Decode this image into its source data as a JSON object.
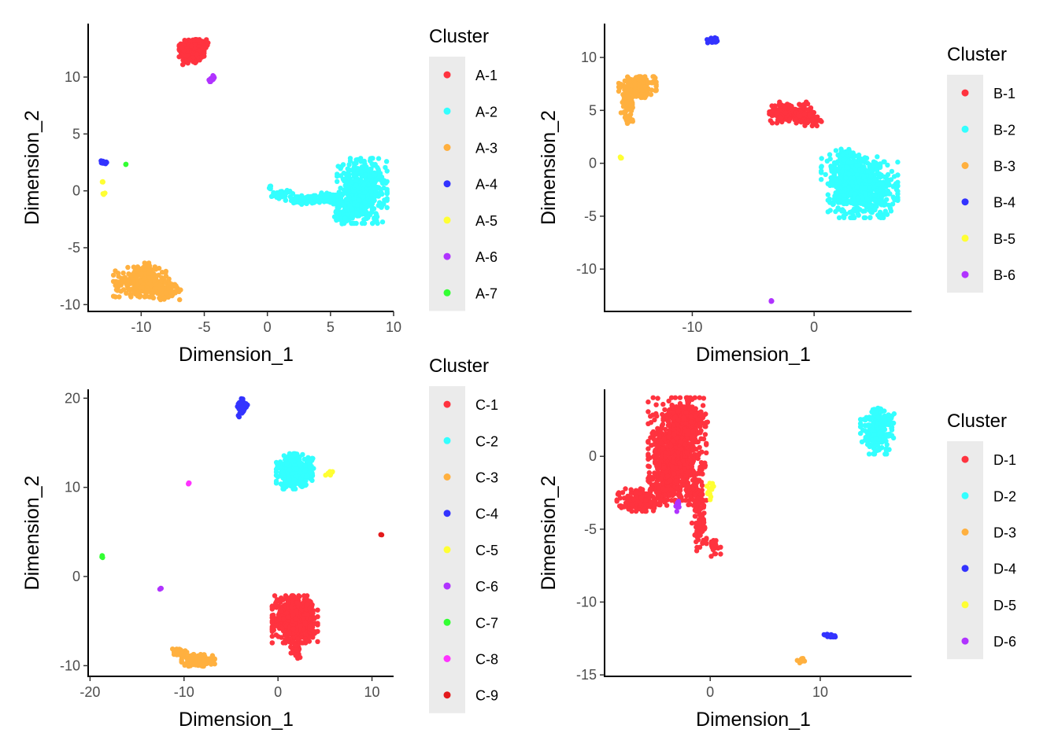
{
  "chart_data": [
    {
      "type": "scatter",
      "xlabel": "Dimension_1",
      "ylabel": "Dimension_2",
      "xlim": [
        -14.2,
        10
      ],
      "ylim": [
        -10.6,
        14.7
      ],
      "xticks": [
        -10,
        -5,
        0,
        5,
        10
      ],
      "yticks": [
        -10,
        -5,
        0,
        5,
        10
      ],
      "legend_title": "Cluster",
      "legend_position": "right",
      "series": [
        {
          "name": "A-1",
          "color": "#FF333F",
          "clusters": [
            {
              "cx": -6.0,
              "cy": 12.2,
              "sx": 0.45,
              "sy": 0.5,
              "n": 260
            },
            {
              "cx": -5.8,
              "cy": 12.8,
              "sx": 0.5,
              "sy": 0.25,
              "n": 120
            }
          ]
        },
        {
          "name": "A-2",
          "color": "#33FFFF",
          "clusters": [
            {
              "cx": 7.5,
              "cy": 0.0,
              "sx": 0.9,
              "sy": 1.3,
              "n": 500
            },
            {
              "cx": 6.2,
              "cy": -1.8,
              "sx": 0.4,
              "sy": 0.5,
              "n": 80
            },
            {
              "cx": 5.0,
              "cy": -0.7,
              "sx": 0.6,
              "sy": 0.25,
              "n": 90
            },
            {
              "cx": 3.2,
              "cy": -0.8,
              "sx": 0.8,
              "sy": 0.18,
              "n": 60
            },
            {
              "cx": 1.2,
              "cy": -0.3,
              "sx": 0.5,
              "sy": 0.2,
              "n": 25
            },
            {
              "cx": 0.2,
              "cy": 0.3,
              "sx": 0.12,
              "sy": 0.1,
              "n": 6
            }
          ]
        },
        {
          "name": "A-3",
          "color": "#FFB03F",
          "clusters": [
            {
              "cx": -10.0,
              "cy": -8.0,
              "sx": 1.0,
              "sy": 0.6,
              "n": 220
            },
            {
              "cx": -8.2,
              "cy": -8.8,
              "sx": 0.6,
              "sy": 0.35,
              "n": 120
            },
            {
              "cx": -9.6,
              "cy": -7.0,
              "sx": 0.35,
              "sy": 0.3,
              "n": 40
            }
          ]
        },
        {
          "name": "A-4",
          "color": "#3333FF",
          "clusters": [
            {
              "cx": -13.0,
              "cy": 2.5,
              "sx": 0.12,
              "sy": 0.1,
              "n": 15
            }
          ]
        },
        {
          "name": "A-5",
          "color": "#FFFF33",
          "clusters": [
            {
              "cx": -13.1,
              "cy": 0.8,
              "sx": 0.05,
              "sy": 0.05,
              "n": 3
            },
            {
              "cx": -13.0,
              "cy": -0.3,
              "sx": 0.08,
              "sy": 0.08,
              "n": 5
            }
          ]
        },
        {
          "name": "A-6",
          "color": "#B033FF",
          "clusters": [
            {
              "cx": -4.4,
              "cy": 9.8,
              "sx": 0.15,
              "sy": 0.15,
              "n": 15
            }
          ]
        },
        {
          "name": "A-7",
          "color": "#33FF33",
          "clusters": [
            {
              "cx": -11.2,
              "cy": 2.3,
              "sx": 0.04,
              "sy": 0.04,
              "n": 3
            }
          ]
        }
      ]
    },
    {
      "type": "scatter",
      "xlabel": "Dimension_1",
      "ylabel": "Dimension_2",
      "xlim": [
        -17.2,
        8.0
      ],
      "ylim": [
        -14.0,
        13.2
      ],
      "xticks": [
        -10,
        0
      ],
      "yticks": [
        -10,
        -5,
        0,
        5,
        10
      ],
      "legend_title": "Cluster",
      "legend_position": "right",
      "series": [
        {
          "name": "B-1",
          "color": "#FF333F",
          "clusters": [
            {
              "cx": -2.0,
              "cy": 4.8,
              "sx": 0.9,
              "sy": 0.45,
              "n": 140
            },
            {
              "cx": -0.5,
              "cy": 4.2,
              "sx": 0.5,
              "sy": 0.3,
              "n": 60
            }
          ]
        },
        {
          "name": "B-2",
          "color": "#33FFFF",
          "clusters": [
            {
              "cx": 4.0,
              "cy": -2.5,
              "sx": 1.3,
              "sy": 1.2,
              "n": 600
            },
            {
              "cx": 3.0,
              "cy": -0.5,
              "sx": 1.1,
              "sy": 0.6,
              "n": 200
            },
            {
              "cx": 2.5,
              "cy": 0.5,
              "sx": 0.35,
              "sy": 0.4,
              "n": 40
            }
          ]
        },
        {
          "name": "B-3",
          "color": "#FFB03F",
          "clusters": [
            {
              "cx": -14.5,
              "cy": 7.2,
              "sx": 0.7,
              "sy": 0.45,
              "n": 250
            },
            {
              "cx": -15.3,
              "cy": 5.5,
              "sx": 0.25,
              "sy": 0.7,
              "n": 60
            },
            {
              "cx": -15.3,
              "cy": 4.0,
              "sx": 0.1,
              "sy": 0.2,
              "n": 10
            }
          ]
        },
        {
          "name": "B-4",
          "color": "#3333FF",
          "clusters": [
            {
              "cx": -8.3,
              "cy": 11.6,
              "sx": 0.22,
              "sy": 0.12,
              "n": 25
            }
          ]
        },
        {
          "name": "B-5",
          "color": "#FFFF33",
          "clusters": [
            {
              "cx": -15.9,
              "cy": 0.5,
              "sx": 0.06,
              "sy": 0.05,
              "n": 4
            }
          ]
        },
        {
          "name": "B-6",
          "color": "#B033FF",
          "clusters": [
            {
              "cx": -3.5,
              "cy": -13.0,
              "sx": 0.05,
              "sy": 0.05,
              "n": 4
            }
          ]
        }
      ]
    },
    {
      "type": "scatter",
      "xlabel": "Dimension_1",
      "ylabel": "Dimension_2",
      "xlim": [
        -20.2,
        12.3
      ],
      "ylim": [
        -11.2,
        21.0
      ],
      "xticks": [
        -20,
        -10,
        0,
        10
      ],
      "yticks": [
        -10,
        0,
        10,
        20
      ],
      "legend_title": "Cluster",
      "legend_position": "right",
      "series": [
        {
          "name": "C-1",
          "color": "#FF333F",
          "clusters": [
            {
              "cx": 1.8,
              "cy": -4.8,
              "sx": 1.1,
              "sy": 1.2,
              "n": 550
            },
            {
              "cx": 2.0,
              "cy": -8.3,
              "sx": 0.3,
              "sy": 0.4,
              "n": 30
            }
          ]
        },
        {
          "name": "C-2",
          "color": "#33FFFF",
          "clusters": [
            {
              "cx": 1.8,
              "cy": 11.8,
              "sx": 0.9,
              "sy": 0.9,
              "n": 350
            }
          ]
        },
        {
          "name": "C-3",
          "color": "#FFB03F",
          "clusters": [
            {
              "cx": -8.5,
              "cy": -9.4,
              "sx": 0.8,
              "sy": 0.3,
              "n": 160
            },
            {
              "cx": -10.5,
              "cy": -8.5,
              "sx": 0.4,
              "sy": 0.25,
              "n": 40
            }
          ]
        },
        {
          "name": "C-4",
          "color": "#3333FF",
          "clusters": [
            {
              "cx": -3.8,
              "cy": 19.0,
              "sx": 0.25,
              "sy": 0.5,
              "n": 60
            }
          ]
        },
        {
          "name": "C-5",
          "color": "#FFFF33",
          "clusters": [
            {
              "cx": 5.5,
              "cy": 11.6,
              "sx": 0.2,
              "sy": 0.12,
              "n": 10
            }
          ]
        },
        {
          "name": "C-6",
          "color": "#B033FF",
          "clusters": [
            {
              "cx": -12.5,
              "cy": -1.4,
              "sx": 0.06,
              "sy": 0.06,
              "n": 4
            }
          ]
        },
        {
          "name": "C-7",
          "color": "#33FF33",
          "clusters": [
            {
              "cx": -18.7,
              "cy": 2.3,
              "sx": 0.08,
              "sy": 0.08,
              "n": 4
            }
          ]
        },
        {
          "name": "C-8",
          "color": "#FF33FF",
          "clusters": [
            {
              "cx": -9.5,
              "cy": 10.4,
              "sx": 0.06,
              "sy": 0.06,
              "n": 4
            }
          ]
        },
        {
          "name": "C-9",
          "color": "#E31A1C",
          "clusters": [
            {
              "cx": 11.0,
              "cy": 4.7,
              "sx": 0.06,
              "sy": 0.06,
              "n": 4
            }
          ]
        }
      ]
    },
    {
      "type": "scatter",
      "xlabel": "Dimension_1",
      "ylabel": "Dimension_2",
      "xlim": [
        -9.6,
        18.3
      ],
      "ylim": [
        -15.1,
        4.6
      ],
      "xticks": [
        0,
        10
      ],
      "yticks": [
        -15,
        -10,
        -5,
        0
      ],
      "legend_title": "Cluster",
      "legend_position": "right",
      "series": [
        {
          "name": "D-1",
          "color": "#FF333F",
          "clusters": [
            {
              "cx": -3.0,
              "cy": 0.5,
              "sx": 1.2,
              "sy": 1.6,
              "n": 700
            },
            {
              "cx": -2.0,
              "cy": 2.5,
              "sx": 0.8,
              "sy": 0.6,
              "n": 150
            },
            {
              "cx": -4.0,
              "cy": -1.8,
              "sx": 0.7,
              "sy": 0.8,
              "n": 150
            },
            {
              "cx": -6.5,
              "cy": -3.0,
              "sx": 0.9,
              "sy": 0.35,
              "n": 180
            },
            {
              "cx": -1.0,
              "cy": -4.5,
              "sx": 0.3,
              "sy": 0.9,
              "n": 70
            },
            {
              "cx": 0.3,
              "cy": -6.2,
              "sx": 0.3,
              "sy": 0.3,
              "n": 25
            },
            {
              "cx": -1.5,
              "cy": -2.5,
              "sx": 0.4,
              "sy": 0.6,
              "n": 50
            }
          ]
        },
        {
          "name": "D-2",
          "color": "#33FFFF",
          "clusters": [
            {
              "cx": 15.2,
              "cy": 1.7,
              "sx": 0.7,
              "sy": 0.7,
              "n": 220
            },
            {
              "cx": 15.3,
              "cy": 2.7,
              "sx": 0.3,
              "sy": 0.3,
              "n": 40
            }
          ]
        },
        {
          "name": "D-3",
          "color": "#FFB03F",
          "clusters": [
            {
              "cx": 8.3,
              "cy": -14.0,
              "sx": 0.2,
              "sy": 0.1,
              "n": 12
            }
          ]
        },
        {
          "name": "D-4",
          "color": "#3333FF",
          "clusters": [
            {
              "cx": 10.9,
              "cy": -12.3,
              "sx": 0.3,
              "sy": 0.08,
              "n": 15
            }
          ]
        },
        {
          "name": "D-5",
          "color": "#FFFF33",
          "clusters": [
            {
              "cx": 0.0,
              "cy": -2.4,
              "sx": 0.15,
              "sy": 0.3,
              "n": 15
            }
          ]
        },
        {
          "name": "D-6",
          "color": "#B033FF",
          "clusters": [
            {
              "cx": -3.0,
              "cy": -3.4,
              "sx": 0.1,
              "sy": 0.18,
              "n": 12
            }
          ]
        }
      ]
    }
  ]
}
